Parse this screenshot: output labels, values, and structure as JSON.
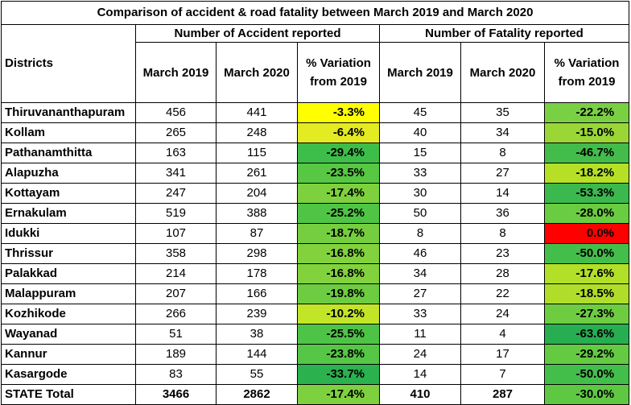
{
  "title": "Comparison of accident & road fatality between March 2019 and March 2020",
  "headers": {
    "districts": "Districts",
    "accident_group": "Number of Accident reported",
    "fatality_group": "Number of Fatality reported",
    "acc_m2019": "March 2019",
    "acc_m2020": "March 2020",
    "acc_var": "% Variation from 2019",
    "fat_m2019": "March 2019",
    "fat_m2020": "March 2020",
    "fat_var": "% Variation from 2019"
  },
  "rows": [
    {
      "district": "Thiruvananthapuram",
      "acc2019": "456",
      "acc2020": "441",
      "accVar": "-3.3%",
      "accColor": "#FFFF00",
      "fat2019": "45",
      "fat2020": "35",
      "fatVar": "-22.2%",
      "fatColor": "#7AD043"
    },
    {
      "district": "Kollam",
      "acc2019": "265",
      "acc2020": "248",
      "accVar": "-6.4%",
      "accColor": "#E4EB22",
      "fat2019": "40",
      "fat2020": "34",
      "fatVar": "-15.0%",
      "fatColor": "#9AD736"
    },
    {
      "district": "Pathanamthitta",
      "acc2019": "163",
      "acc2020": "115",
      "accVar": "-29.4%",
      "accColor": "#3DBE4A",
      "fat2019": "15",
      "fat2020": "8",
      "fatVar": "-46.7%",
      "fatColor": "#43BC4C"
    },
    {
      "district": "Alapuzha",
      "acc2019": "341",
      "acc2020": "261",
      "accVar": "-23.5%",
      "accColor": "#57C744",
      "fat2019": "33",
      "fat2020": "27",
      "fatVar": "-18.2%",
      "fatColor": "#B5E026"
    },
    {
      "district": "Kottayam",
      "acc2019": "247",
      "acc2020": "204",
      "accVar": "-17.4%",
      "accColor": "#7ED13E",
      "fat2019": "30",
      "fat2020": "14",
      "fatVar": "-53.3%",
      "fatColor": "#3BB84E"
    },
    {
      "district": "Ernakulam",
      "acc2019": "519",
      "acc2020": "388",
      "accVar": "-25.2%",
      "accColor": "#50C545",
      "fat2019": "50",
      "fat2020": "36",
      "fatVar": "-28.0%",
      "fatColor": "#6ACC40"
    },
    {
      "district": "Idukki",
      "acc2019": "107",
      "acc2020": "87",
      "accVar": "-18.7%",
      "accColor": "#75CE40",
      "fat2019": "8",
      "fat2020": "8",
      "fatVar": "0.0%",
      "fatColor": "#FF0000"
    },
    {
      "district": "Thrissur",
      "acc2019": "358",
      "acc2020": "298",
      "accVar": "-16.8%",
      "accColor": "#82D23D",
      "fat2019": "46",
      "fat2020": "23",
      "fatVar": "-50.0%",
      "fatColor": "#44BE4B"
    },
    {
      "district": "Palakkad",
      "acc2019": "214",
      "acc2020": "178",
      "accVar": "-16.8%",
      "accColor": "#82D23D",
      "fat2019": "34",
      "fat2020": "28",
      "fatVar": "-17.6%",
      "fatColor": "#B2DF28"
    },
    {
      "district": "Malappuram",
      "acc2019": "207",
      "acc2020": "166",
      "accVar": "-19.8%",
      "accColor": "#6DCC41",
      "fat2019": "27",
      "fat2020": "22",
      "fatVar": "-18.5%",
      "fatColor": "#AFDD2A"
    },
    {
      "district": "Kozhikode",
      "acc2019": "266",
      "acc2020": "239",
      "accVar": "-10.2%",
      "accColor": "#C3E528",
      "fat2019": "33",
      "fat2020": "24",
      "fatVar": "-27.3%",
      "fatColor": "#6ECC41"
    },
    {
      "district": "Wayanad",
      "acc2019": "51",
      "acc2020": "38",
      "accVar": "-25.5%",
      "accColor": "#4EC446",
      "fat2019": "11",
      "fat2020": "4",
      "fatVar": "-63.6%",
      "fatColor": "#26AE50"
    },
    {
      "district": "Kannur",
      "acc2019": "189",
      "acc2020": "144",
      "accVar": "-23.8%",
      "accColor": "#55C645",
      "fat2019": "24",
      "fat2020": "17",
      "fatVar": "-29.2%",
      "fatColor": "#64CA42"
    },
    {
      "district": "Kasargode",
      "acc2019": "83",
      "acc2020": "55",
      "accVar": "-33.7%",
      "accColor": "#2BB24F",
      "fat2019": "14",
      "fat2020": "7",
      "fatVar": "-50.0%",
      "fatColor": "#44BE4B"
    }
  ],
  "total": {
    "district": "STATE Total",
    "acc2019": "3466",
    "acc2020": "2862",
    "accVar": "-17.4%",
    "accColor": "#7ED13E",
    "fat2019": "410",
    "fat2020": "287",
    "fatVar": "-30.0%",
    "fatColor": "#5EC843"
  }
}
